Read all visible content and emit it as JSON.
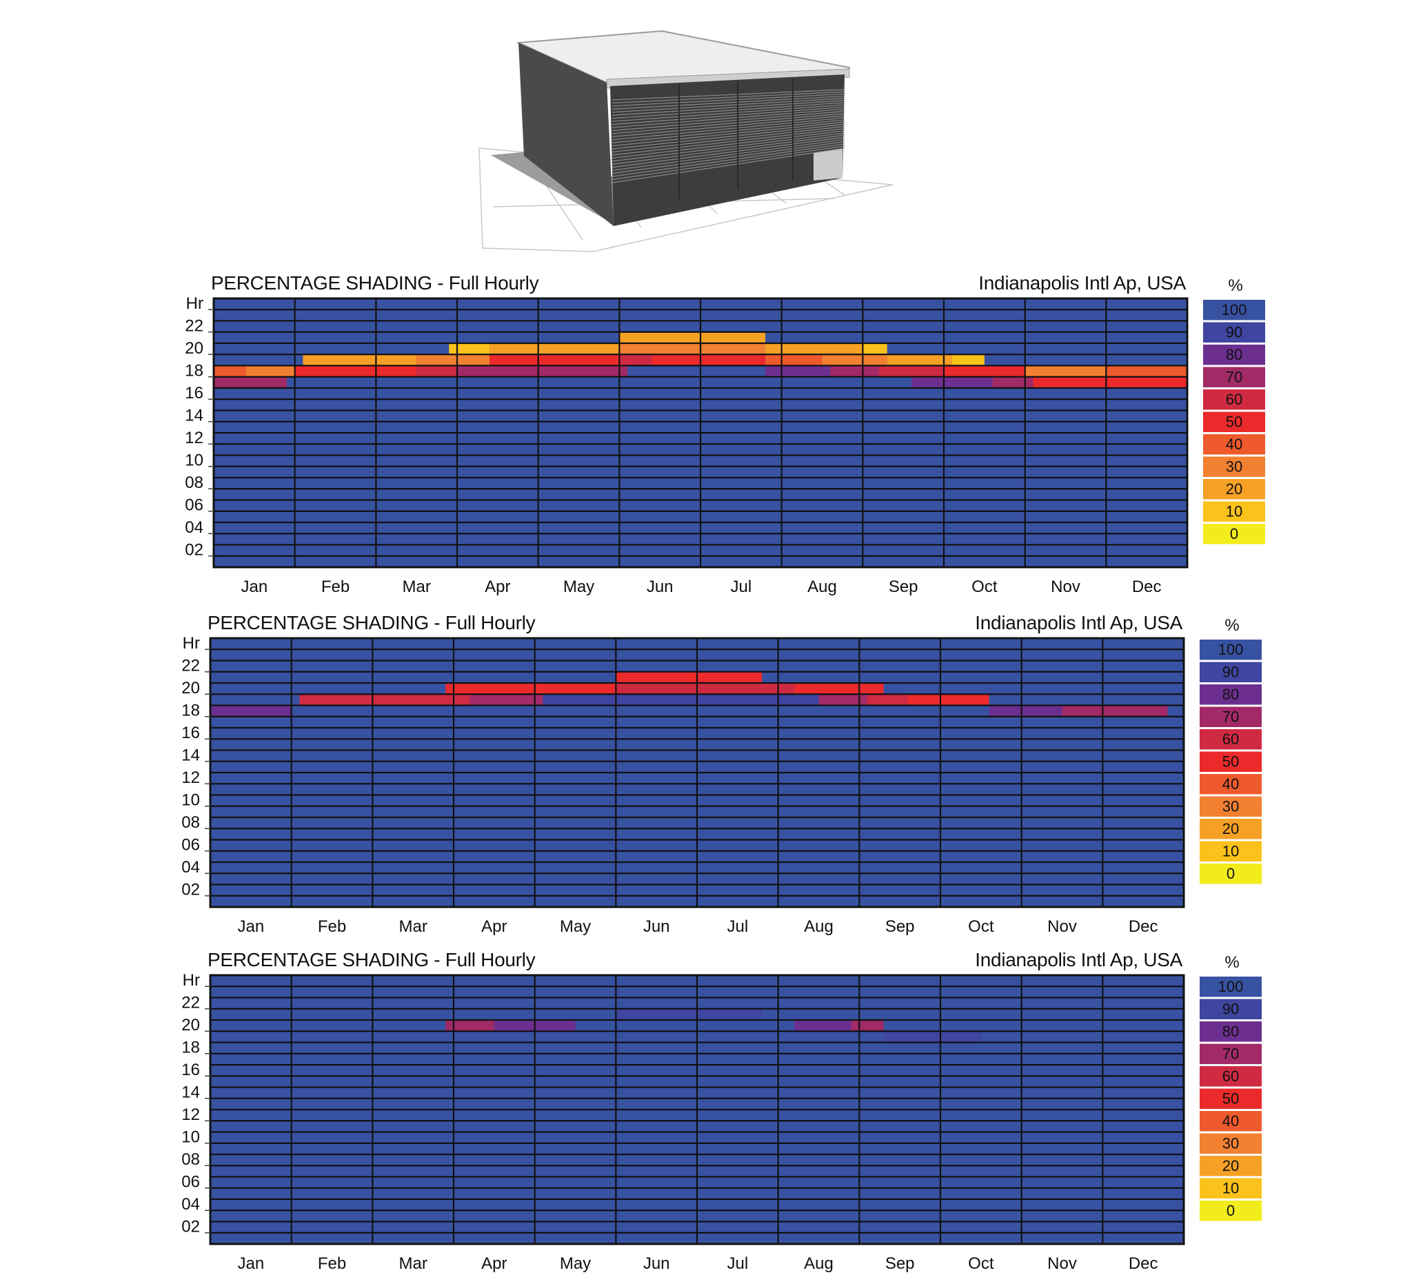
{
  "figure": {
    "axis_hour_label": "Hr",
    "legend_unit": "%"
  },
  "colors": {
    "0": "#f2ec1c",
    "10": "#fbc21c",
    "20": "#f6a126",
    "30": "#f28031",
    "40": "#ef5a2c",
    "50": "#ec2a2b",
    "60": "#cf2a42",
    "70": "#a12a67",
    "80": "#6c2f90",
    "90": "#3f45a0",
    "100": "#3852a2",
    "grid": "#111111"
  },
  "chart_data": [
    {
      "type": "heatmap",
      "title": "PERCENTAGE SHADING - Full Hourly",
      "location": "Indianapolis Intl Ap, USA",
      "x_categories": [
        "Jan",
        "Feb",
        "Mar",
        "Apr",
        "May",
        "Jun",
        "Jul",
        "Aug",
        "Sep",
        "Oct",
        "Nov",
        "Dec"
      ],
      "y_tick_labels": [
        "Hr",
        "22",
        "20",
        "18",
        "16",
        "14",
        "12",
        "10",
        "08",
        "06",
        "04",
        "02"
      ],
      "hours_range": [
        0,
        24
      ],
      "legend": {
        "unit": "%",
        "levels": [
          100,
          90,
          80,
          70,
          60,
          50,
          40,
          30,
          20,
          10,
          0
        ]
      },
      "default_value": 100,
      "cells": [
        {
          "hour": 20,
          "from": 5.0,
          "to": 6.8,
          "value": 20
        },
        {
          "hour": 19,
          "from": 2.9,
          "to": 3.4,
          "value": 10
        },
        {
          "hour": 19,
          "from": 3.4,
          "to": 5.0,
          "value": 20
        },
        {
          "hour": 19,
          "from": 5.0,
          "to": 6.8,
          "value": 30
        },
        {
          "hour": 19,
          "from": 6.8,
          "to": 8.0,
          "value": 20
        },
        {
          "hour": 19,
          "from": 8.0,
          "to": 8.3,
          "value": 10
        },
        {
          "hour": 18,
          "from": 1.1,
          "to": 2.5,
          "value": 20
        },
        {
          "hour": 18,
          "from": 2.5,
          "to": 3.4,
          "value": 30
        },
        {
          "hour": 18,
          "from": 3.4,
          "to": 5.0,
          "value": 50
        },
        {
          "hour": 18,
          "from": 5.0,
          "to": 5.4,
          "value": 60
        },
        {
          "hour": 18,
          "from": 5.4,
          "to": 6.8,
          "value": 50
        },
        {
          "hour": 18,
          "from": 6.8,
          "to": 7.5,
          "value": 40
        },
        {
          "hour": 18,
          "from": 7.5,
          "to": 8.3,
          "value": 30
        },
        {
          "hour": 18,
          "from": 8.3,
          "to": 9.1,
          "value": 20
        },
        {
          "hour": 18,
          "from": 9.1,
          "to": 9.5,
          "value": 10
        },
        {
          "hour": 17,
          "from": 0.0,
          "to": 0.4,
          "value": 40
        },
        {
          "hour": 17,
          "from": 0.4,
          "to": 1.0,
          "value": 30
        },
        {
          "hour": 17,
          "from": 1.0,
          "to": 2.5,
          "value": 50
        },
        {
          "hour": 17,
          "from": 2.5,
          "to": 3.0,
          "value": 60
        },
        {
          "hour": 17,
          "from": 3.0,
          "to": 5.1,
          "value": 70
        },
        {
          "hour": 17,
          "from": 5.1,
          "to": 6.8,
          "value": 100
        },
        {
          "hour": 17,
          "from": 6.8,
          "to": 7.6,
          "value": 80
        },
        {
          "hour": 17,
          "from": 7.6,
          "to": 8.2,
          "value": 70
        },
        {
          "hour": 17,
          "from": 8.2,
          "to": 9.0,
          "value": 60
        },
        {
          "hour": 17,
          "from": 9.0,
          "to": 10.0,
          "value": 50
        },
        {
          "hour": 17,
          "from": 10.0,
          "to": 11.0,
          "value": 30
        },
        {
          "hour": 17,
          "from": 11.0,
          "to": 12.0,
          "value": 40
        },
        {
          "hour": 16,
          "from": 0.0,
          "to": 0.9,
          "value": 70
        },
        {
          "hour": 16,
          "from": 8.6,
          "to": 9.6,
          "value": 80
        },
        {
          "hour": 16,
          "from": 9.6,
          "to": 10.1,
          "value": 70
        },
        {
          "hour": 16,
          "from": 10.1,
          "to": 12.0,
          "value": 50
        }
      ]
    },
    {
      "type": "heatmap",
      "title": "PERCENTAGE SHADING - Full Hourly",
      "location": "Indianapolis Intl Ap, USA",
      "x_categories": [
        "Jan",
        "Feb",
        "Mar",
        "Apr",
        "May",
        "Jun",
        "Jul",
        "Aug",
        "Sep",
        "Oct",
        "Nov",
        "Dec"
      ],
      "y_tick_labels": [
        "Hr",
        "22",
        "20",
        "18",
        "16",
        "14",
        "12",
        "10",
        "08",
        "06",
        "04",
        "02"
      ],
      "hours_range": [
        0,
        24
      ],
      "legend": {
        "unit": "%",
        "levels": [
          100,
          90,
          80,
          70,
          60,
          50,
          40,
          30,
          20,
          10,
          0
        ]
      },
      "default_value": 100,
      "cells": [
        {
          "hour": 20,
          "from": 5.0,
          "to": 6.8,
          "value": 50
        },
        {
          "hour": 19,
          "from": 2.9,
          "to": 5.0,
          "value": 50
        },
        {
          "hour": 19,
          "from": 5.0,
          "to": 7.2,
          "value": 60
        },
        {
          "hour": 19,
          "from": 7.2,
          "to": 8.3,
          "value": 50
        },
        {
          "hour": 18,
          "from": 1.1,
          "to": 2.5,
          "value": 60
        },
        {
          "hour": 18,
          "from": 2.5,
          "to": 3.2,
          "value": 60
        },
        {
          "hour": 18,
          "from": 3.2,
          "to": 4.1,
          "value": 70
        },
        {
          "hour": 18,
          "from": 4.1,
          "to": 7.5,
          "value": 90
        },
        {
          "hour": 18,
          "from": 7.5,
          "to": 8.1,
          "value": 70
        },
        {
          "hour": 18,
          "from": 8.1,
          "to": 8.6,
          "value": 60
        },
        {
          "hour": 18,
          "from": 8.6,
          "to": 9.6,
          "value": 50
        },
        {
          "hour": 17,
          "from": 0.0,
          "to": 1.0,
          "value": 80
        },
        {
          "hour": 17,
          "from": 9.6,
          "to": 10.5,
          "value": 80
        },
        {
          "hour": 17,
          "from": 10.5,
          "to": 11.8,
          "value": 70
        }
      ]
    },
    {
      "type": "heatmap",
      "title": "PERCENTAGE SHADING - Full Hourly",
      "location": "Indianapolis Intl Ap, USA",
      "x_categories": [
        "Jan",
        "Feb",
        "Mar",
        "Apr",
        "May",
        "Jun",
        "Jul",
        "Aug",
        "Sep",
        "Oct",
        "Nov",
        "Dec"
      ],
      "y_tick_labels": [
        "Hr",
        "22",
        "20",
        "18",
        "16",
        "14",
        "12",
        "10",
        "08",
        "06",
        "04",
        "02"
      ],
      "hours_range": [
        0,
        24
      ],
      "legend": {
        "unit": "%",
        "levels": [
          100,
          90,
          80,
          70,
          60,
          50,
          40,
          30,
          20,
          10,
          0
        ]
      },
      "default_value": 100,
      "cells": [
        {
          "hour": 20,
          "from": 5.0,
          "to": 6.8,
          "value": 90
        },
        {
          "hour": 19,
          "from": 2.9,
          "to": 3.5,
          "value": 70
        },
        {
          "hour": 19,
          "from": 3.5,
          "to": 4.5,
          "value": 80
        },
        {
          "hour": 19,
          "from": 7.2,
          "to": 7.9,
          "value": 80
        },
        {
          "hour": 19,
          "from": 7.9,
          "to": 8.3,
          "value": 70
        },
        {
          "hour": 18,
          "from": 8.3,
          "to": 9.5,
          "value": 90
        }
      ]
    }
  ]
}
